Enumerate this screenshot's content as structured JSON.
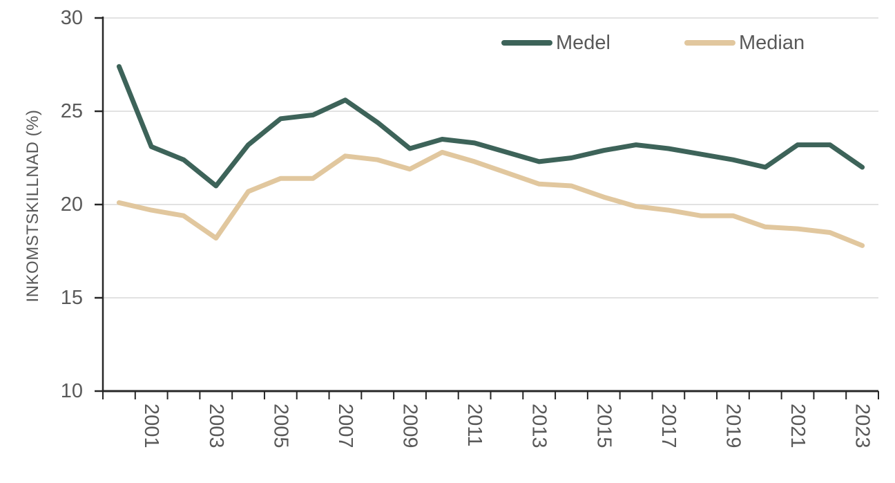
{
  "colors": {
    "background": "#ffffff",
    "axis": "#262626",
    "grid": "#d9d9d9",
    "text": "#595959",
    "medel": "#3d6359",
    "median": "#e1c79e"
  },
  "y_axis_title": "INKOMSTSKILLNAD (%)",
  "chart_data": {
    "type": "line",
    "title": "",
    "xlabel": "",
    "ylabel": "INKOMSTSKILLNAD (%)",
    "ylim": [
      10,
      30
    ],
    "yticks": [
      10,
      15,
      20,
      25,
      30
    ],
    "grid": true,
    "legend_position": "top-right",
    "categories": [
      2000,
      2001,
      2002,
      2003,
      2004,
      2005,
      2006,
      2007,
      2008,
      2009,
      2010,
      2011,
      2012,
      2013,
      2014,
      2015,
      2016,
      2017,
      2018,
      2019,
      2020,
      2021,
      2022,
      2023
    ],
    "x_tick_labels": [
      "2001",
      "2003",
      "2005",
      "2007",
      "2009",
      "2011",
      "2013",
      "2015",
      "2017",
      "2019",
      "2021",
      "2023"
    ],
    "series": [
      {
        "name": "Medel",
        "color": "#3d6359",
        "values": [
          27.4,
          23.1,
          22.4,
          21.0,
          23.2,
          24.6,
          24.8,
          25.6,
          24.4,
          23.0,
          23.5,
          23.3,
          22.8,
          22.3,
          22.5,
          22.9,
          23.2,
          23.0,
          22.7,
          22.4,
          22.0,
          23.2,
          23.2,
          22.0
        ]
      },
      {
        "name": "Median",
        "color": "#e1c79e",
        "values": [
          20.1,
          19.7,
          19.4,
          18.2,
          20.7,
          21.4,
          21.4,
          22.6,
          22.4,
          21.9,
          22.8,
          22.3,
          21.7,
          21.1,
          21.0,
          20.4,
          19.9,
          19.7,
          19.4,
          19.4,
          18.8,
          18.7,
          18.5,
          17.8
        ]
      }
    ]
  }
}
